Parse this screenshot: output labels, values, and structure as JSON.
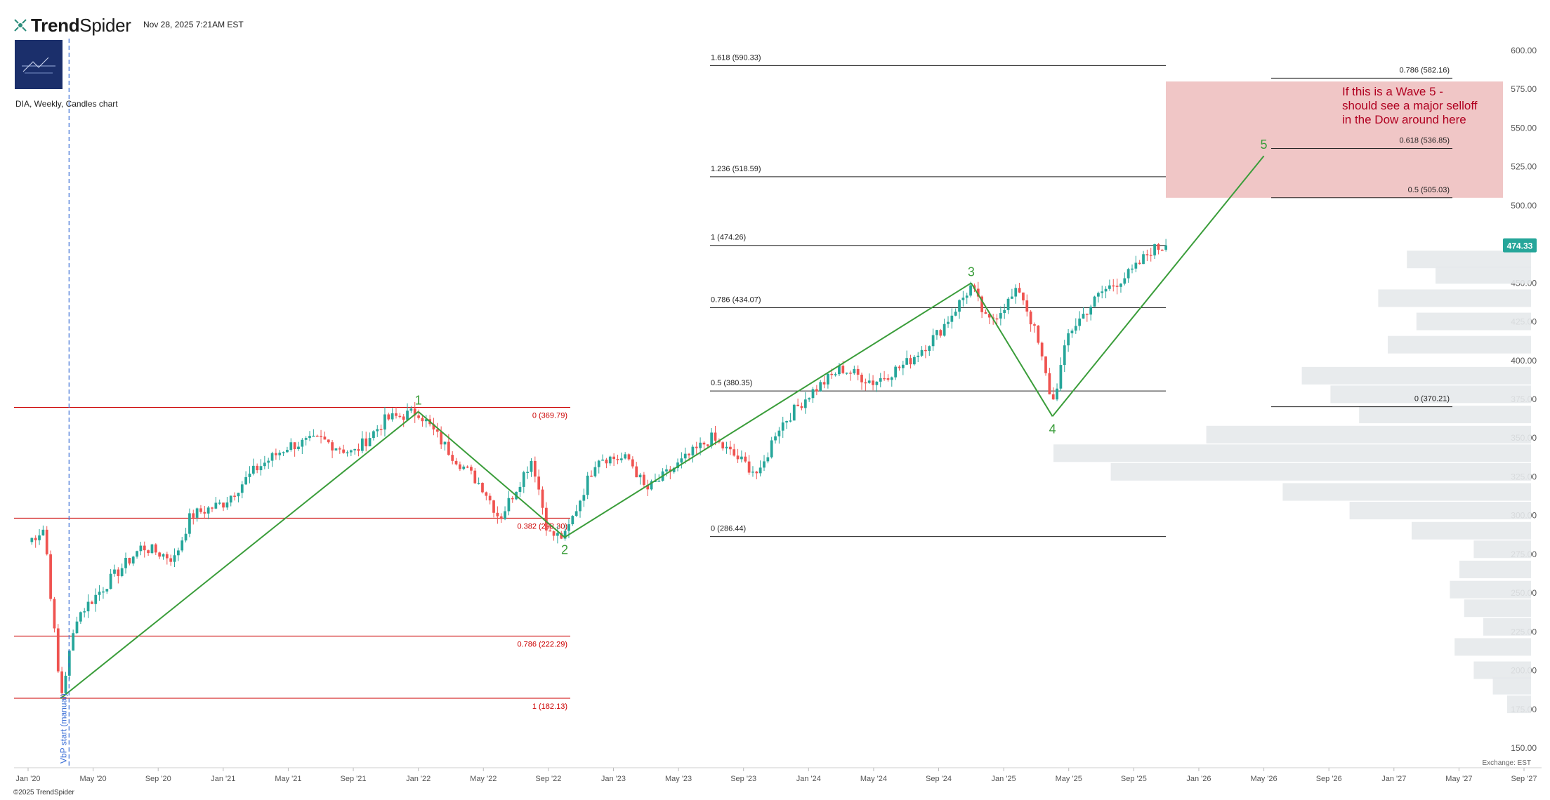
{
  "header": {
    "brand": "TrendSpider",
    "brand_bold": "Trend",
    "brand_light": "Spider",
    "timestamp": "Nov 28, 2025 7:21AM EST"
  },
  "subtitle": "DIA, Weekly, Candles chart",
  "footer": "©2025 TrendSpider",
  "exchange_label": "Exchange: EST",
  "current_price": "474.33",
  "colors": {
    "up": "#26a69a",
    "down": "#ef5350",
    "wave": "#3a9d3a",
    "fib_red": "#cc0000",
    "fib_black": "#222222",
    "zone_fill": "#e8a8a8",
    "annotation_text": "#b00020",
    "vbp_line": "#3b6fd6",
    "price_badge": "#26a69a",
    "volume_profile": "#e5e9eb"
  },
  "chart_data": {
    "type": "candlestick",
    "symbol": "DIA",
    "timeframe": "Weekly",
    "ylim": [
      150,
      600
    ],
    "y_ticks": [
      "600.00",
      "575.00",
      "550.00",
      "525.00",
      "500.00",
      "475.00",
      "450.00",
      "425.00",
      "400.00",
      "375.00",
      "350.00",
      "325.00",
      "300.00",
      "275.00",
      "250.00",
      "225.00",
      "200.00",
      "175.00",
      "150.00"
    ],
    "x_ticks": [
      "Jan '20",
      "May '20",
      "Sep '20",
      "Jan '21",
      "May '21",
      "Sep '21",
      "Jan '22",
      "May '22",
      "Sep '22",
      "Jan '23",
      "May '23",
      "Sep '23",
      "Jan '24",
      "May '24",
      "Sep '24",
      "Jan '25",
      "May '25",
      "Sep '25",
      "Jan '26",
      "May '26",
      "Sep '26",
      "Jan '27",
      "May '27",
      "Sep '27"
    ],
    "price_anchors": [
      {
        "date": "Jan '20",
        "price": 283
      },
      {
        "date": "Feb '20",
        "price": 292
      },
      {
        "date": "Mar '20",
        "price": 182
      },
      {
        "date": "Apr '20",
        "price": 235
      },
      {
        "date": "Jun '20",
        "price": 258
      },
      {
        "date": "Aug '20",
        "price": 280
      },
      {
        "date": "Oct '20",
        "price": 272
      },
      {
        "date": "Nov '20",
        "price": 300
      },
      {
        "date": "Jan '21",
        "price": 308
      },
      {
        "date": "Mar '21",
        "price": 330
      },
      {
        "date": "May '21",
        "price": 345
      },
      {
        "date": "Jul '21",
        "price": 349
      },
      {
        "date": "Sep '21",
        "price": 340
      },
      {
        "date": "Nov '21",
        "price": 362
      },
      {
        "date": "Jan '22",
        "price": 367
      },
      {
        "date": "Mar '22",
        "price": 340
      },
      {
        "date": "May '22",
        "price": 318
      },
      {
        "date": "Jun '22",
        "price": 298
      },
      {
        "date": "Aug '22",
        "price": 337
      },
      {
        "date": "Sep '22",
        "price": 288
      },
      {
        "date": "Oct '22",
        "price": 286
      },
      {
        "date": "Dec '22",
        "price": 338
      },
      {
        "date": "Feb '23",
        "price": 336
      },
      {
        "date": "Mar '23",
        "price": 316
      },
      {
        "date": "Jul '23",
        "price": 350
      },
      {
        "date": "Oct '23",
        "price": 326
      },
      {
        "date": "Nov '23",
        "price": 355
      },
      {
        "date": "Jan '24",
        "price": 378
      },
      {
        "date": "Mar '24",
        "price": 395
      },
      {
        "date": "May '24",
        "price": 386
      },
      {
        "date": "Jul '24",
        "price": 398
      },
      {
        "date": "Sep '24",
        "price": 418
      },
      {
        "date": "Nov '24",
        "price": 448
      },
      {
        "date": "Dec '24",
        "price": 424
      },
      {
        "date": "Jan '25",
        "price": 435
      },
      {
        "date": "Feb '25",
        "price": 446
      },
      {
        "date": "Mar '25",
        "price": 416
      },
      {
        "date": "Apr '25",
        "price": 372
      },
      {
        "date": "May '25",
        "price": 418
      },
      {
        "date": "Jul '25",
        "price": 444
      },
      {
        "date": "Sep '25",
        "price": 458
      },
      {
        "date": "Oct '25",
        "price": 471
      },
      {
        "date": "Nov '25",
        "price": 474.33
      }
    ],
    "fib_sets": [
      {
        "name": "left",
        "color": "red",
        "levels": [
          {
            "label": "0 (369.79)",
            "price": 369.79
          },
          {
            "label": "0.382 (298.30)",
            "price": 298.3
          },
          {
            "label": "0.786 (222.29)",
            "price": 222.29
          },
          {
            "label": "1 (182.13)",
            "price": 182.13
          }
        ]
      },
      {
        "name": "extension",
        "color": "black",
        "levels": [
          {
            "label": "1.618 (590.33)",
            "price": 590.33
          },
          {
            "label": "1.236 (518.59)",
            "price": 518.59
          },
          {
            "label": "1 (474.26)",
            "price": 474.26
          },
          {
            "label": "0.786 (434.07)",
            "price": 434.07
          },
          {
            "label": "0.5 (380.35)",
            "price": 380.35
          },
          {
            "label": "0 (286.44)",
            "price": 286.44
          }
        ]
      },
      {
        "name": "right",
        "color": "black",
        "levels": [
          {
            "label": "0.786 (582.16)",
            "price": 582.16
          },
          {
            "label": "0.618 (536.85)",
            "price": 536.85
          },
          {
            "label": "0.5 (505.03)",
            "price": 505.03
          },
          {
            "label": "0 (370.21)",
            "price": 370.21
          }
        ]
      }
    ],
    "waves": [
      {
        "label": "",
        "date": "Mar '20",
        "price": 182
      },
      {
        "label": "1",
        "date": "Jan '22",
        "price": 367
      },
      {
        "label": "2",
        "date": "Oct '22",
        "price": 286
      },
      {
        "label": "3",
        "date": "Nov '24",
        "price": 450
      },
      {
        "label": "4",
        "date": "Apr '25",
        "price": 364
      },
      {
        "label": "5",
        "date": "May '26",
        "price": 532
      }
    ],
    "target_zone": {
      "price_top": 580,
      "price_bottom": 505
    },
    "annotation": [
      "If this is a Wave 5 -",
      "should see a major selloff",
      "in the Dow around here"
    ],
    "vbp_marker": {
      "label": "VbP start (manual)",
      "date": "Mar '20"
    },
    "volume_profile": [
      {
        "price": 465,
        "volume": 0.26
      },
      {
        "price": 455,
        "volume": 0.2
      },
      {
        "price": 440,
        "volume": 0.32
      },
      {
        "price": 425,
        "volume": 0.24
      },
      {
        "price": 410,
        "volume": 0.3
      },
      {
        "price": 390,
        "volume": 0.48
      },
      {
        "price": 378,
        "volume": 0.42
      },
      {
        "price": 365,
        "volume": 0.36
      },
      {
        "price": 352,
        "volume": 0.68
      },
      {
        "price": 340,
        "volume": 1.0
      },
      {
        "price": 328,
        "volume": 0.88
      },
      {
        "price": 315,
        "volume": 0.52
      },
      {
        "price": 303,
        "volume": 0.38
      },
      {
        "price": 290,
        "volume": 0.25
      },
      {
        "price": 278,
        "volume": 0.12
      },
      {
        "price": 265,
        "volume": 0.15
      },
      {
        "price": 252,
        "volume": 0.17
      },
      {
        "price": 240,
        "volume": 0.14
      },
      {
        "price": 228,
        "volume": 0.1
      },
      {
        "price": 215,
        "volume": 0.16
      },
      {
        "price": 200,
        "volume": 0.12
      },
      {
        "price": 190,
        "volume": 0.08
      },
      {
        "price": 178,
        "volume": 0.05
      }
    ]
  }
}
